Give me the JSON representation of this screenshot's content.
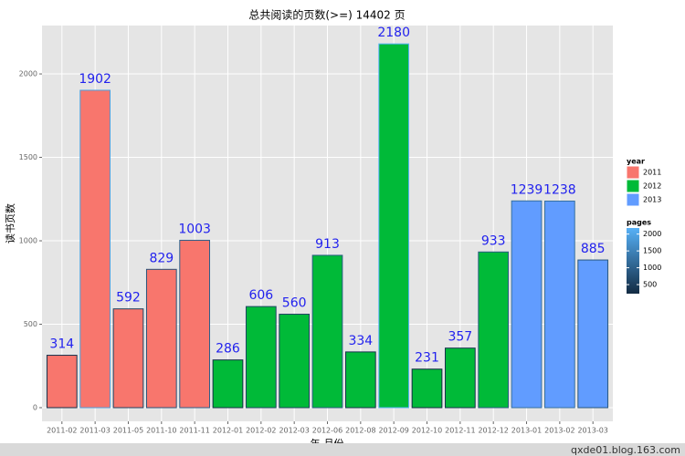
{
  "chart_data": {
    "type": "bar",
    "title": "总共阅读的页数(>=) 14402 页",
    "x_label": "年-月份",
    "y_label": "读书页数",
    "categories": [
      "2011-02",
      "2011-03",
      "2011-05",
      "2011-10",
      "2011-11",
      "2012-01",
      "2012-02",
      "2012-03",
      "2012-06",
      "2012-08",
      "2012-09",
      "2012-10",
      "2012-11",
      "2012-12",
      "2013-01",
      "2013-02",
      "2013-03"
    ],
    "legend_title": "year",
    "series": [
      {
        "name": "2011",
        "color": "#F8766D",
        "values": [
          314,
          1902,
          592,
          829,
          1003,
          null,
          null,
          null,
          null,
          null,
          null,
          null,
          null,
          null,
          null,
          null,
          null
        ]
      },
      {
        "name": "2012",
        "color": "#00BA38",
        "values": [
          null,
          null,
          null,
          null,
          null,
          286,
          606,
          560,
          913,
          334,
          2180,
          231,
          357,
          933,
          null,
          null,
          null
        ]
      },
      {
        "name": "2013",
        "color": "#619CFF",
        "values": [
          null,
          null,
          null,
          null,
          null,
          null,
          null,
          null,
          null,
          null,
          null,
          null,
          null,
          null,
          1239,
          1238,
          885
        ]
      }
    ],
    "outline_scale": {
      "title": "pages",
      "lim": [
        231,
        2180
      ],
      "colors": [
        "#132B43",
        "#56B1F7"
      ],
      "ticks": [
        500,
        1000,
        1500,
        2000
      ]
    },
    "ylim": [
      -82,
      2290
    ],
    "yticks": [
      0,
      500,
      1000,
      1500,
      2000
    ],
    "grid": true,
    "label_color": "#2222ee",
    "footer": "qxde01.blog.163.com"
  }
}
